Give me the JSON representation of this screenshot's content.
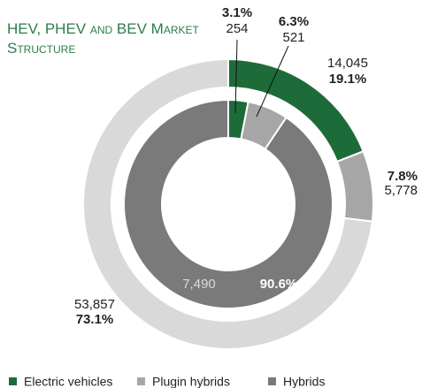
{
  "chart_data": {
    "type": "donut",
    "title": "HEV, PHEV and BEV Market Structure",
    "categories": [
      "Electric vehicles",
      "Plugin hybrids",
      "Hybrids"
    ],
    "legend_colors": [
      "#1e6b3a",
      "#a6a6a6",
      "#7a7a7a"
    ],
    "legend": "bottom",
    "rings": [
      {
        "values": [
          254,
          521,
          7490
        ],
        "value_labels": [
          "254",
          "521",
          "7,490"
        ],
        "percentages": [
          3.1,
          6.3,
          90.6
        ],
        "percentage_labels": [
          "3.1%",
          "6.3%",
          "90.6%"
        ],
        "colors": [
          "#1e6b3a",
          "#a6a6a6",
          "#7a7a7a"
        ]
      },
      {
        "values": [
          14045,
          5778,
          53857
        ],
        "value_labels": [
          "14,045",
          "5,778",
          "53,857"
        ],
        "percentages": [
          19.1,
          7.8,
          73.1
        ],
        "percentage_labels": [
          "19.1%",
          "7.8%",
          "73.1%"
        ],
        "colors": [
          "#1e6b3a",
          "#a6a6a6",
          "#d9d9d9"
        ]
      }
    ]
  }
}
